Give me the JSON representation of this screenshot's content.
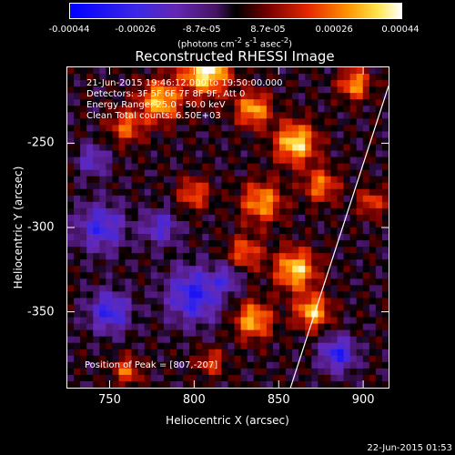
{
  "chart_data": {
    "type": "heatmap",
    "title": "Reconstructed RHESSI Image",
    "xlabel": "Heliocentric X (arcsec)",
    "ylabel": "Heliocentric Y (arcsec)",
    "xlim": [
      725,
      915
    ],
    "ylim": [
      -395,
      -205
    ],
    "x_ticks": [
      750,
      800,
      850,
      900
    ],
    "y_ticks": [
      -250,
      -300,
      -350
    ],
    "colorbar": {
      "ticks": [
        "-0.00044",
        "-0.00026",
        "-8.7e-05",
        "8.7e-05",
        "0.00026",
        "0.00044"
      ],
      "unit_main": "(photons cm",
      "unit_sup1": "-2",
      "unit_mid1": " s",
      "unit_sup2": "-1",
      "unit_mid2": " asec",
      "unit_sup3": "-2",
      "unit_end": ")",
      "range": [
        -0.00044,
        0.00044
      ]
    },
    "info_lines": [
      "21-Jun-2015 19:46:12.000 to 19:50:00.000",
      "Detectors: 3F 5F 6F 7F 8F 9F, Att 0",
      "Energy Range: 25.0 - 50.0 keV",
      "Clean     Total counts: 6.50E+03"
    ],
    "peak_label": "Position of Peak = [807,-207]",
    "limb_line": [
      [
        857,
        -395
      ],
      [
        915,
        -216
      ]
    ]
  },
  "timestamp": "22-Jun-2015 01:53"
}
